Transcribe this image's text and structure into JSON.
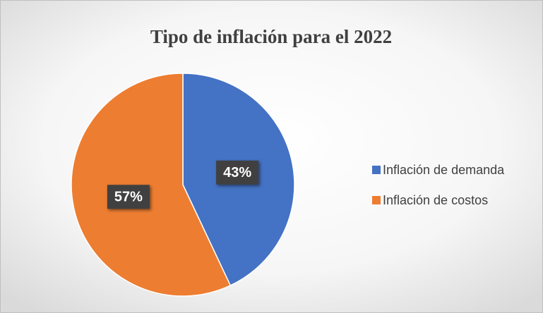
{
  "chart_data": {
    "type": "pie",
    "title": "Tipo de inflación para el 2022",
    "categories": [
      "Inflación de demanda",
      "Inflación de costos"
    ],
    "values": [
      43,
      57
    ],
    "value_labels": [
      "43%",
      "57%"
    ],
    "colors": [
      "#4472c4",
      "#ed7d31"
    ],
    "legend": "right"
  }
}
